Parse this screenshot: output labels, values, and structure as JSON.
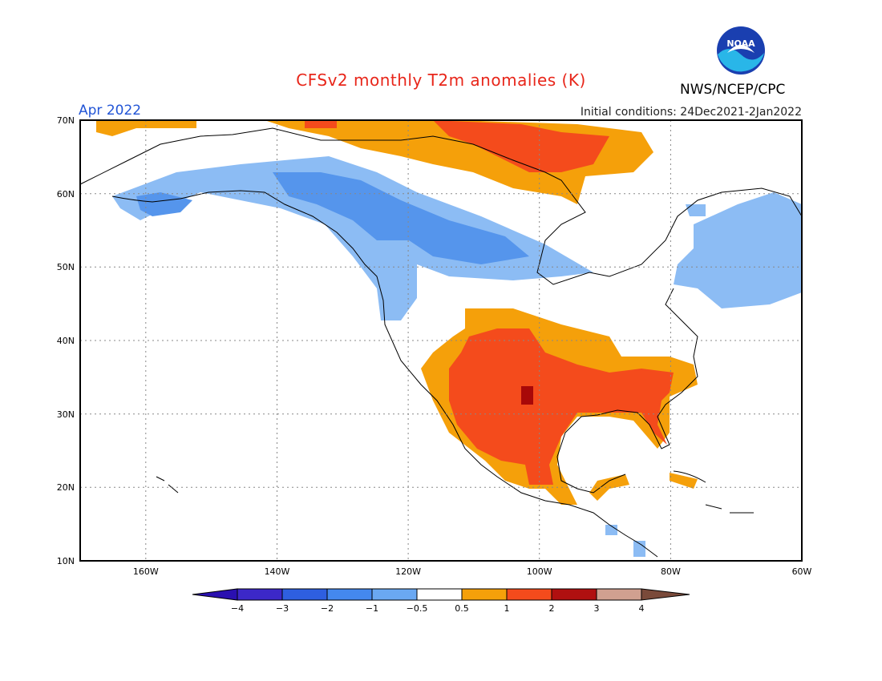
{
  "header": {
    "title": "CFSv2 monthly T2m anomalies (K)",
    "valid_month": "Apr 2022",
    "initial_conditions": "Initial conditions: 24Dec2021-2Jan2022",
    "organization": "NWS/NCEP/CPC",
    "logo_text": "NOAA"
  },
  "map": {
    "lat_labels": [
      "70N",
      "60N",
      "50N",
      "40N",
      "30N",
      "20N",
      "10N"
    ],
    "lon_labels": [
      "160W",
      "140W",
      "120W",
      "100W",
      "80W",
      "60W"
    ]
  },
  "colorbar": {
    "labels": [
      "−4",
      "−3",
      "−2",
      "−1",
      "−0.5",
      "0.5",
      "1",
      "2",
      "3",
      "4"
    ],
    "colors": [
      "#3c28c8",
      "#2e5fe0",
      "#4488ee",
      "#6aa8f2",
      "#ffffff",
      "#f5a00a",
      "#f44b1c",
      "#b01010",
      "#d0a090",
      "#7a4a3a"
    ],
    "low_arrow_color": "#2a10b0",
    "high_arrow_color": "#7a4a3a"
  },
  "colors": {
    "title": "#e8261a",
    "valid_month": "#2255d6",
    "light_blue": "#8cbcf4",
    "blue": "#5595ec",
    "orange": "#f5a00a",
    "red_orange": "#f44b1c",
    "dark_red": "#a80808"
  }
}
